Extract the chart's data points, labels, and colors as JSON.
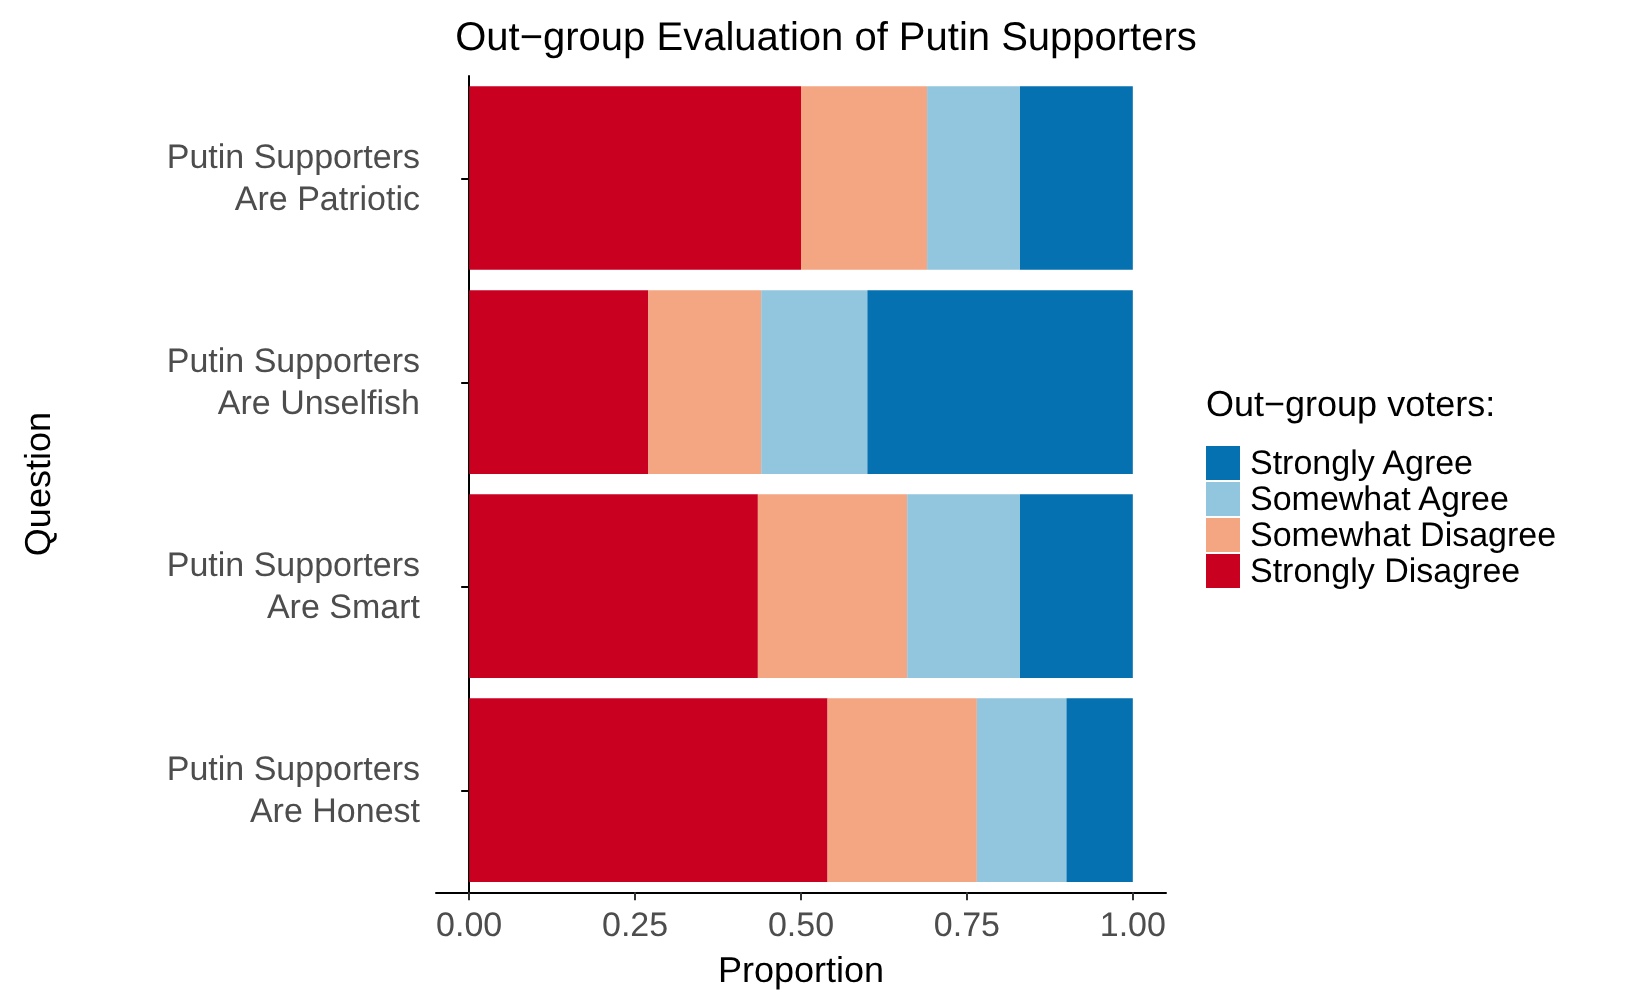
{
  "chart_data": {
    "type": "bar",
    "orientation": "horizontal",
    "stacked": true,
    "title": "Out−group Evaluation of Putin Supporters",
    "xlabel": "Proportion",
    "ylabel": "Question",
    "legend_title": "Out−group voters:",
    "legend": "right",
    "grid": false,
    "categories": [
      "Putin Supporters\nAre Patriotic",
      "Putin Supporters\nAre Unselfish",
      "Putin Supporters\nAre Smart",
      "Putin Supporters\nAre Honest"
    ],
    "xlim": [
      -0.05,
      1.05
    ],
    "xticks": [
      {
        "value": 0,
        "label": "0.00"
      },
      {
        "value": 0.25,
        "label": "0.25"
      },
      {
        "value": 0.5,
        "label": "0.50"
      },
      {
        "value": 0.75,
        "label": "0.75"
      },
      {
        "value": 1,
        "label": "1.00"
      }
    ],
    "series": [
      {
        "name": "Strongly Disagree",
        "color": "#ca0020",
        "values": [
          0.5,
          0.27,
          0.435,
          0.54
        ]
      },
      {
        "name": "Somewhat Disagree",
        "color": "#f4a582",
        "values": [
          0.19,
          0.17,
          0.225,
          0.225
        ]
      },
      {
        "name": "Somewhat Agree",
        "color": "#92c5de",
        "values": [
          0.14,
          0.16,
          0.17,
          0.135
        ]
      },
      {
        "name": "Strongly Agree",
        "color": "#0571b0",
        "values": [
          0.17,
          0.4,
          0.17,
          0.1
        ]
      }
    ]
  }
}
